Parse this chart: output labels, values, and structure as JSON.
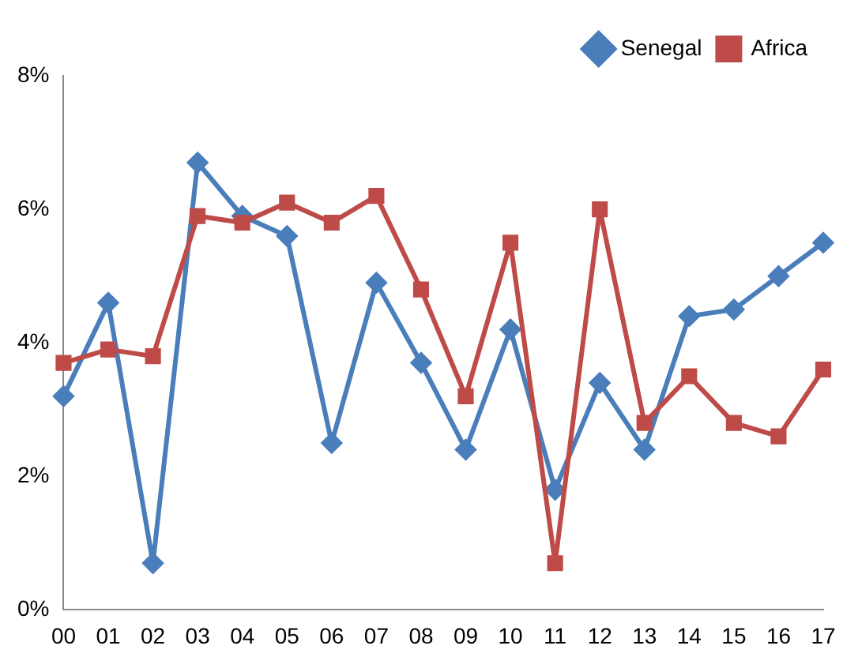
{
  "chart_data": {
    "type": "line",
    "categories": [
      "00",
      "01",
      "02",
      "03",
      "04",
      "05",
      "06",
      "07",
      "08",
      "09",
      "10",
      "11",
      "12",
      "13",
      "14",
      "15",
      "16",
      "17"
    ],
    "series": [
      {
        "name": "Senegal",
        "color": "#4a7ebb",
        "marker": "diamond",
        "values": [
          3.2,
          4.6,
          0.7,
          6.7,
          5.9,
          5.6,
          2.5,
          4.9,
          3.7,
          2.4,
          4.2,
          1.8,
          3.4,
          2.4,
          4.4,
          4.5,
          5.0,
          5.5
        ]
      },
      {
        "name": "Africa",
        "color": "#be4b48",
        "marker": "square",
        "values": [
          3.7,
          3.9,
          3.8,
          5.9,
          5.8,
          6.1,
          5.8,
          6.2,
          4.8,
          3.2,
          5.5,
          0.7,
          6.0,
          2.8,
          3.5,
          2.8,
          2.6,
          3.6
        ]
      }
    ],
    "ylim": [
      0,
      8
    ],
    "yticks": [
      {
        "value": 0,
        "label": "0%"
      },
      {
        "value": 2,
        "label": "2%"
      },
      {
        "value": 4,
        "label": "4%"
      },
      {
        "value": 6,
        "label": "6%"
      },
      {
        "value": 8,
        "label": "8%"
      }
    ],
    "grid": false,
    "legend": "top right",
    "line_style": "solid"
  }
}
